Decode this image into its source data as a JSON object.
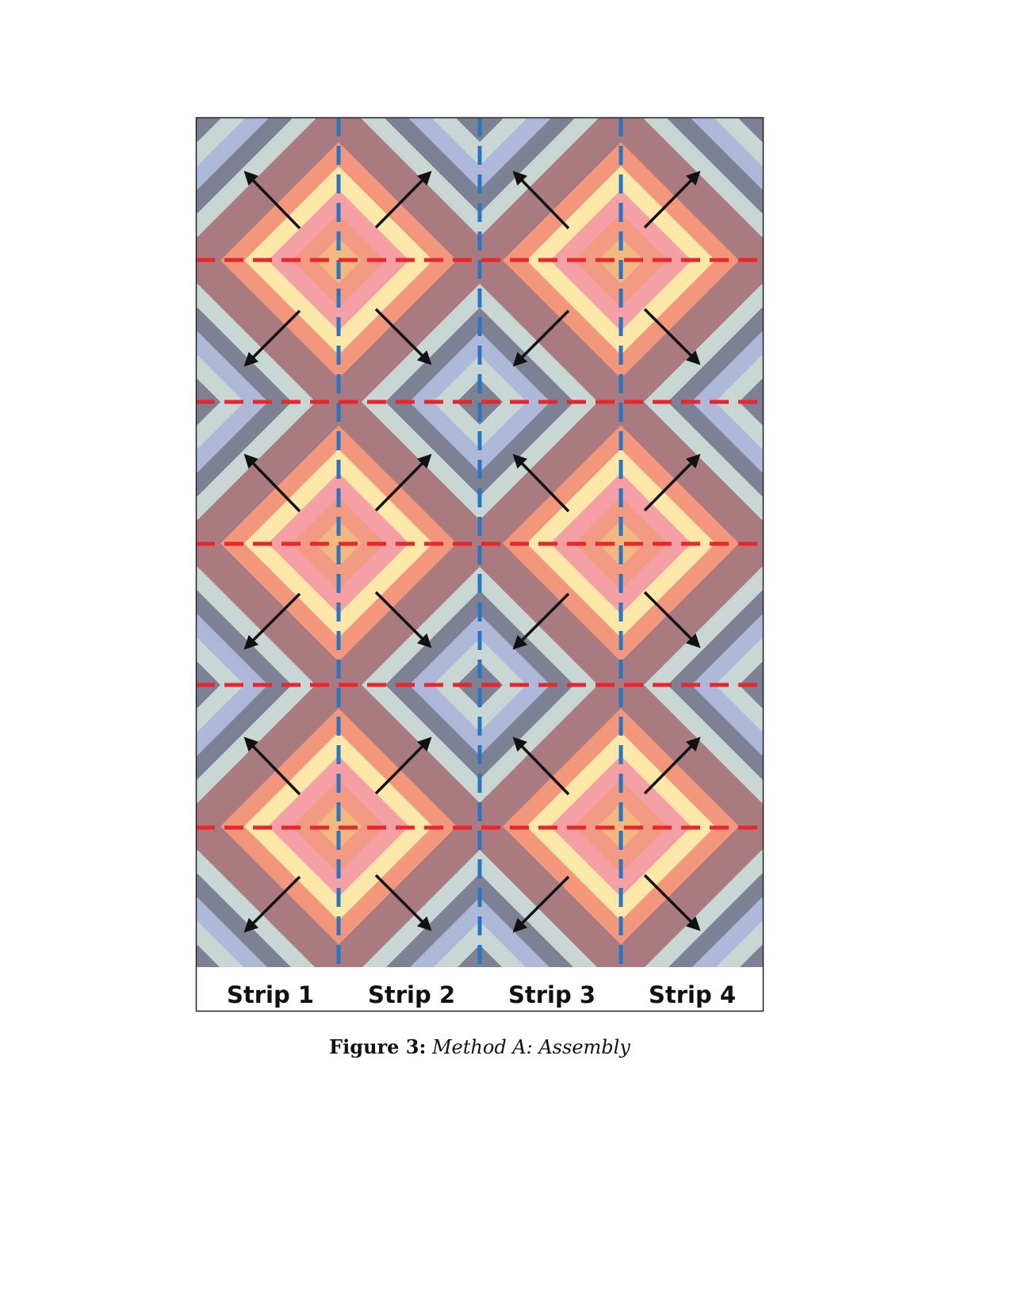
{
  "figure": {
    "strip_labels": [
      "Strip 1",
      "Strip 2",
      "Strip 3",
      "Strip 4"
    ],
    "caption": {
      "label": "Figure 3:",
      "title": "Method A: Assembly"
    }
  }
}
